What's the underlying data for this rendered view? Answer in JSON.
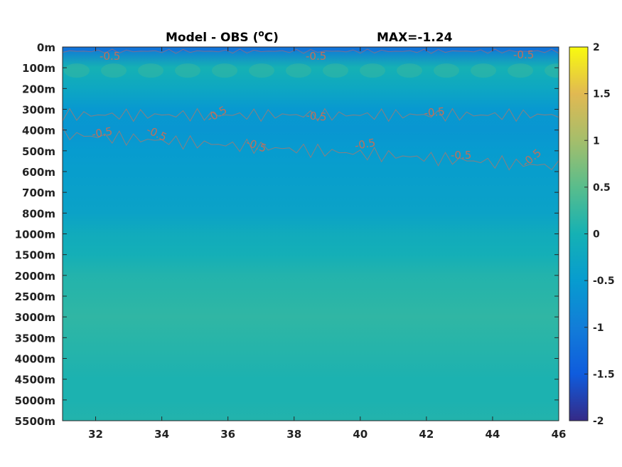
{
  "chart_data": {
    "type": "heatmap",
    "title_left": "Model - OBS (",
    "title_unit_sup": "o",
    "title_unit_tail": "C)",
    "title_right": "MAX=-1.24",
    "x_ticks": [
      32,
      34,
      36,
      38,
      40,
      42,
      44,
      46
    ],
    "xlim": [
      31,
      46
    ],
    "y_ticks": [
      "0m",
      "100m",
      "200m",
      "300m",
      "400m",
      "500m",
      "600m",
      "700m",
      "800m",
      "1000m",
      "1500m",
      "2000m",
      "2500m",
      "3000m",
      "3500m",
      "4000m",
      "4500m",
      "5000m",
      "5500m"
    ],
    "colorbar": {
      "range": [
        -2,
        2
      ],
      "ticks": [
        2,
        1.5,
        1,
        0.5,
        0,
        -0.5,
        -1,
        -1.5,
        -2
      ],
      "colormap": "parula"
    },
    "contour_level": -0.5,
    "contour_label": "-0.5",
    "contour_label_count": 15,
    "field": [
      {
        "depth": "0m",
        "value": -1.1
      },
      {
        "depth": "100m",
        "value": 0.0
      },
      {
        "depth": "200m",
        "value": -0.25
      },
      {
        "depth": "300m",
        "value": -0.55
      },
      {
        "depth": "400m",
        "value": -0.6
      },
      {
        "depth": "500m",
        "value": -0.5
      },
      {
        "depth": "600m",
        "value": -0.45
      },
      {
        "depth": "700m",
        "value": -0.4
      },
      {
        "depth": "800m",
        "value": -0.35
      },
      {
        "depth": "1000m",
        "value": -0.15
      },
      {
        "depth": "1500m",
        "value": -0.05
      },
      {
        "depth": "2000m",
        "value": 0.1
      },
      {
        "depth": "2500m",
        "value": 0.15
      },
      {
        "depth": "3000m",
        "value": 0.2
      },
      {
        "depth": "3500m",
        "value": 0.15
      },
      {
        "depth": "4000m",
        "value": 0.1
      },
      {
        "depth": "4500m",
        "value": 0.05
      },
      {
        "depth": "5000m",
        "value": 0.05
      },
      {
        "depth": "5500m",
        "value": 0.1
      }
    ]
  }
}
